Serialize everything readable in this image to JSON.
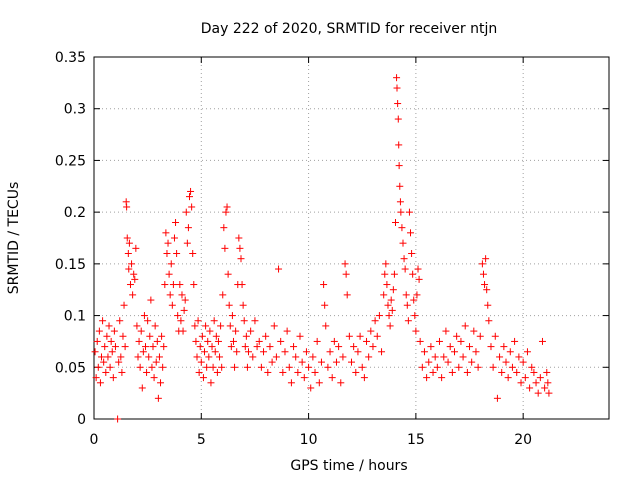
{
  "chart_data": {
    "type": "scatter",
    "title": "Day 222 of 2020, SRMTID for receiver ntjn",
    "xlabel": "GPS time / hours",
    "ylabel": "SRMTID / TECUs",
    "xlim": [
      0,
      24
    ],
    "ylim": [
      0,
      0.35
    ],
    "x_ticks": [
      0,
      5,
      10,
      15,
      20
    ],
    "x_tick_labels": [
      "0",
      "5",
      "10",
      "15",
      "20"
    ],
    "y_ticks": [
      0,
      0.05,
      0.1,
      0.15,
      0.2,
      0.25,
      0.3,
      0.35
    ],
    "y_tick_labels": [
      "0",
      "0.05",
      "0.1",
      "0.15",
      "0.2",
      "0.25",
      "0.3",
      "0.35"
    ],
    "grid": true,
    "marker": "plus",
    "series": [
      {
        "color": "#ff0000",
        "points": [
          [
            0.05,
            0.065
          ],
          [
            0.1,
            0.04
          ],
          [
            0.15,
            0.075
          ],
          [
            0.2,
            0.05
          ],
          [
            0.25,
            0.085
          ],
          [
            0.3,
            0.035
          ],
          [
            0.35,
            0.06
          ],
          [
            0.4,
            0.095
          ],
          [
            0.45,
            0.055
          ],
          [
            0.5,
            0.07
          ],
          [
            0.55,
            0.045
          ],
          [
            0.6,
            0.08
          ],
          [
            0.65,
            0.06
          ],
          [
            0.7,
            0.09
          ],
          [
            0.75,
            0.05
          ],
          [
            0.8,
            0.075
          ],
          [
            0.85,
            0.065
          ],
          [
            0.9,
            0.04
          ],
          [
            0.95,
            0.085
          ],
          [
            1.0,
            0.07
          ],
          [
            1.1,
            0.0
          ],
          [
            1.15,
            0.055
          ],
          [
            1.2,
            0.095
          ],
          [
            1.25,
            0.06
          ],
          [
            1.3,
            0.045
          ],
          [
            1.35,
            0.08
          ],
          [
            1.4,
            0.11
          ],
          [
            1.45,
            0.07
          ],
          [
            1.5,
            0.21
          ],
          [
            1.52,
            0.205
          ],
          [
            1.55,
            0.175
          ],
          [
            1.6,
            0.16
          ],
          [
            1.62,
            0.145
          ],
          [
            1.65,
            0.17
          ],
          [
            1.7,
            0.13
          ],
          [
            1.75,
            0.15
          ],
          [
            1.8,
            0.12
          ],
          [
            1.85,
            0.14
          ],
          [
            1.9,
            0.135
          ],
          [
            1.95,
            0.165
          ],
          [
            2.0,
            0.09
          ],
          [
            2.05,
            0.06
          ],
          [
            2.1,
            0.075
          ],
          [
            2.15,
            0.05
          ],
          [
            2.2,
            0.085
          ],
          [
            2.25,
            0.03
          ],
          [
            2.3,
            0.065
          ],
          [
            2.35,
            0.1
          ],
          [
            2.4,
            0.07
          ],
          [
            2.45,
            0.045
          ],
          [
            2.5,
            0.095
          ],
          [
            2.55,
            0.06
          ],
          [
            2.6,
            0.08
          ],
          [
            2.65,
            0.115
          ],
          [
            2.7,
            0.05
          ],
          [
            2.75,
            0.07
          ],
          [
            2.8,
            0.04
          ],
          [
            2.85,
            0.09
          ],
          [
            2.9,
            0.055
          ],
          [
            2.95,
            0.075
          ],
          [
            3.0,
            0.02
          ],
          [
            3.05,
            0.06
          ],
          [
            3.1,
            0.035
          ],
          [
            3.15,
            0.08
          ],
          [
            3.2,
            0.05
          ],
          [
            3.25,
            0.07
          ],
          [
            3.3,
            0.13
          ],
          [
            3.35,
            0.18
          ],
          [
            3.4,
            0.16
          ],
          [
            3.45,
            0.17
          ],
          [
            3.5,
            0.14
          ],
          [
            3.55,
            0.12
          ],
          [
            3.6,
            0.15
          ],
          [
            3.65,
            0.11
          ],
          [
            3.7,
            0.13
          ],
          [
            3.75,
            0.175
          ],
          [
            3.8,
            0.19
          ],
          [
            3.85,
            0.16
          ],
          [
            3.9,
            0.1
          ],
          [
            3.95,
            0.085
          ],
          [
            4.0,
            0.13
          ],
          [
            4.05,
            0.095
          ],
          [
            4.1,
            0.12
          ],
          [
            4.15,
            0.085
          ],
          [
            4.2,
            0.105
          ],
          [
            4.25,
            0.115
          ],
          [
            4.3,
            0.2
          ],
          [
            4.35,
            0.17
          ],
          [
            4.4,
            0.185
          ],
          [
            4.45,
            0.215
          ],
          [
            4.5,
            0.22
          ],
          [
            4.55,
            0.205
          ],
          [
            4.6,
            0.16
          ],
          [
            4.65,
            0.13
          ],
          [
            4.7,
            0.09
          ],
          [
            4.75,
            0.075
          ],
          [
            4.8,
            0.06
          ],
          [
            4.85,
            0.095
          ],
          [
            4.9,
            0.045
          ],
          [
            4.95,
            0.07
          ],
          [
            5.0,
            0.055
          ],
          [
            5.05,
            0.08
          ],
          [
            5.1,
            0.04
          ],
          [
            5.15,
            0.065
          ],
          [
            5.2,
            0.09
          ],
          [
            5.25,
            0.05
          ],
          [
            5.3,
            0.075
          ],
          [
            5.35,
            0.06
          ],
          [
            5.4,
            0.085
          ],
          [
            5.45,
            0.035
          ],
          [
            5.5,
            0.07
          ],
          [
            5.55,
            0.05
          ],
          [
            5.6,
            0.095
          ],
          [
            5.65,
            0.065
          ],
          [
            5.7,
            0.08
          ],
          [
            5.75,
            0.045
          ],
          [
            5.8,
            0.075
          ],
          [
            5.85,
            0.06
          ],
          [
            5.9,
            0.09
          ],
          [
            5.95,
            0.05
          ],
          [
            6.0,
            0.12
          ],
          [
            6.05,
            0.185
          ],
          [
            6.1,
            0.165
          ],
          [
            6.15,
            0.2
          ],
          [
            6.2,
            0.205
          ],
          [
            6.25,
            0.14
          ],
          [
            6.3,
            0.11
          ],
          [
            6.35,
            0.09
          ],
          [
            6.4,
            0.07
          ],
          [
            6.45,
            0.1
          ],
          [
            6.5,
            0.075
          ],
          [
            6.55,
            0.05
          ],
          [
            6.6,
            0.085
          ],
          [
            6.65,
            0.065
          ],
          [
            6.7,
            0.13
          ],
          [
            6.75,
            0.175
          ],
          [
            6.8,
            0.165
          ],
          [
            6.85,
            0.155
          ],
          [
            6.9,
            0.13
          ],
          [
            6.95,
            0.11
          ],
          [
            7.0,
            0.095
          ],
          [
            7.05,
            0.07
          ],
          [
            7.1,
            0.08
          ],
          [
            7.15,
            0.05
          ],
          [
            7.2,
            0.065
          ],
          [
            7.3,
            0.085
          ],
          [
            7.4,
            0.06
          ],
          [
            7.5,
            0.095
          ],
          [
            7.6,
            0.07
          ],
          [
            7.7,
            0.075
          ],
          [
            7.8,
            0.05
          ],
          [
            7.9,
            0.065
          ],
          [
            8.0,
            0.08
          ],
          [
            8.1,
            0.045
          ],
          [
            8.2,
            0.07
          ],
          [
            8.3,
            0.055
          ],
          [
            8.4,
            0.09
          ],
          [
            8.5,
            0.06
          ],
          [
            8.6,
            0.145
          ],
          [
            8.7,
            0.075
          ],
          [
            8.8,
            0.045
          ],
          [
            8.9,
            0.065
          ],
          [
            9.0,
            0.085
          ],
          [
            9.1,
            0.05
          ],
          [
            9.2,
            0.035
          ],
          [
            9.3,
            0.07
          ],
          [
            9.4,
            0.06
          ],
          [
            9.5,
            0.045
          ],
          [
            9.6,
            0.08
          ],
          [
            9.7,
            0.055
          ],
          [
            9.8,
            0.04
          ],
          [
            9.9,
            0.065
          ],
          [
            10.0,
            0.05
          ],
          [
            10.1,
            0.03
          ],
          [
            10.2,
            0.06
          ],
          [
            10.3,
            0.045
          ],
          [
            10.4,
            0.075
          ],
          [
            10.5,
            0.035
          ],
          [
            10.6,
            0.055
          ],
          [
            10.7,
            0.13
          ],
          [
            10.75,
            0.11
          ],
          [
            10.8,
            0.09
          ],
          [
            10.9,
            0.05
          ],
          [
            11.0,
            0.065
          ],
          [
            11.1,
            0.04
          ],
          [
            11.2,
            0.075
          ],
          [
            11.3,
            0.055
          ],
          [
            11.4,
            0.07
          ],
          [
            11.5,
            0.035
          ],
          [
            11.6,
            0.06
          ],
          [
            11.7,
            0.15
          ],
          [
            11.75,
            0.14
          ],
          [
            11.8,
            0.12
          ],
          [
            11.9,
            0.08
          ],
          [
            12.0,
            0.055
          ],
          [
            12.1,
            0.07
          ],
          [
            12.2,
            0.045
          ],
          [
            12.3,
            0.065
          ],
          [
            12.4,
            0.08
          ],
          [
            12.5,
            0.05
          ],
          [
            12.6,
            0.04
          ],
          [
            12.7,
            0.075
          ],
          [
            12.8,
            0.06
          ],
          [
            12.9,
            0.085
          ],
          [
            13.0,
            0.07
          ],
          [
            13.1,
            0.095
          ],
          [
            13.2,
            0.08
          ],
          [
            13.3,
            0.1
          ],
          [
            13.4,
            0.065
          ],
          [
            13.5,
            0.12
          ],
          [
            13.55,
            0.14
          ],
          [
            13.6,
            0.15
          ],
          [
            13.65,
            0.13
          ],
          [
            13.7,
            0.11
          ],
          [
            13.75,
            0.1
          ],
          [
            13.8,
            0.09
          ],
          [
            13.85,
            0.115
          ],
          [
            13.9,
            0.105
          ],
          [
            13.95,
            0.125
          ],
          [
            14.0,
            0.14
          ],
          [
            14.05,
            0.19
          ],
          [
            14.1,
            0.33
          ],
          [
            14.12,
            0.32
          ],
          [
            14.15,
            0.305
          ],
          [
            14.18,
            0.29
          ],
          [
            14.2,
            0.265
          ],
          [
            14.22,
            0.245
          ],
          [
            14.25,
            0.225
          ],
          [
            14.28,
            0.21
          ],
          [
            14.3,
            0.2
          ],
          [
            14.35,
            0.185
          ],
          [
            14.4,
            0.17
          ],
          [
            14.45,
            0.155
          ],
          [
            14.5,
            0.145
          ],
          [
            14.55,
            0.12
          ],
          [
            14.6,
            0.11
          ],
          [
            14.65,
            0.095
          ],
          [
            14.7,
            0.2
          ],
          [
            14.75,
            0.18
          ],
          [
            14.8,
            0.16
          ],
          [
            14.85,
            0.14
          ],
          [
            14.9,
            0.115
          ],
          [
            14.95,
            0.1
          ],
          [
            15.0,
            0.085
          ],
          [
            15.05,
            0.12
          ],
          [
            15.1,
            0.145
          ],
          [
            15.15,
            0.135
          ],
          [
            15.2,
            0.075
          ],
          [
            15.3,
            0.05
          ],
          [
            15.4,
            0.065
          ],
          [
            15.5,
            0.04
          ],
          [
            15.6,
            0.055
          ],
          [
            15.7,
            0.07
          ],
          [
            15.8,
            0.045
          ],
          [
            15.9,
            0.06
          ],
          [
            16.0,
            0.05
          ],
          [
            16.1,
            0.075
          ],
          [
            16.2,
            0.04
          ],
          [
            16.3,
            0.06
          ],
          [
            16.4,
            0.085
          ],
          [
            16.5,
            0.055
          ],
          [
            16.6,
            0.07
          ],
          [
            16.7,
            0.045
          ],
          [
            16.8,
            0.065
          ],
          [
            16.9,
            0.08
          ],
          [
            17.0,
            0.05
          ],
          [
            17.1,
            0.075
          ],
          [
            17.2,
            0.06
          ],
          [
            17.3,
            0.09
          ],
          [
            17.4,
            0.045
          ],
          [
            17.5,
            0.07
          ],
          [
            17.6,
            0.055
          ],
          [
            17.7,
            0.085
          ],
          [
            17.8,
            0.065
          ],
          [
            17.9,
            0.05
          ],
          [
            18.0,
            0.08
          ],
          [
            18.1,
            0.15
          ],
          [
            18.15,
            0.14
          ],
          [
            18.2,
            0.13
          ],
          [
            18.25,
            0.155
          ],
          [
            18.3,
            0.125
          ],
          [
            18.35,
            0.11
          ],
          [
            18.4,
            0.095
          ],
          [
            18.5,
            0.07
          ],
          [
            18.6,
            0.05
          ],
          [
            18.7,
            0.08
          ],
          [
            18.8,
            0.02
          ],
          [
            18.9,
            0.06
          ],
          [
            19.0,
            0.045
          ],
          [
            19.1,
            0.07
          ],
          [
            19.2,
            0.055
          ],
          [
            19.3,
            0.04
          ],
          [
            19.4,
            0.065
          ],
          [
            19.5,
            0.05
          ],
          [
            19.6,
            0.075
          ],
          [
            19.7,
            0.045
          ],
          [
            19.8,
            0.06
          ],
          [
            19.9,
            0.035
          ],
          [
            20.0,
            0.055
          ],
          [
            20.1,
            0.04
          ],
          [
            20.2,
            0.065
          ],
          [
            20.3,
            0.03
          ],
          [
            20.4,
            0.05
          ],
          [
            20.5,
            0.045
          ],
          [
            20.6,
            0.035
          ],
          [
            20.7,
            0.025
          ],
          [
            20.8,
            0.04
          ],
          [
            20.9,
            0.075
          ],
          [
            21.0,
            0.03
          ],
          [
            21.1,
            0.045
          ],
          [
            21.15,
            0.035
          ],
          [
            21.2,
            0.025
          ]
        ]
      }
    ]
  }
}
